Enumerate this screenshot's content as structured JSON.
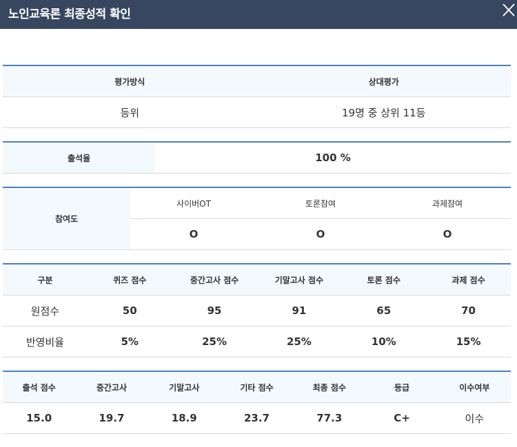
{
  "window": {
    "title": "노인교육론 최종성적 확인"
  },
  "evaluation": {
    "method_label": "평가방식",
    "method_value": "등위",
    "relative_label": "상대평가",
    "relative_value": "19명 중 상위 11등"
  },
  "attendance": {
    "label": "출석율",
    "value": "100 %"
  },
  "participation": {
    "label": "참여도",
    "columns": [
      "사이버OT",
      "토론참여",
      "과제참여"
    ],
    "values": [
      "O",
      "O",
      "O"
    ]
  },
  "scores": {
    "headers": [
      "구분",
      "퀴즈 점수",
      "중간고사 점수",
      "기말고사 점수",
      "토론 점수",
      "과제 점수"
    ],
    "rows": [
      [
        "원점수",
        "50",
        "95",
        "91",
        "65",
        "70"
      ],
      [
        "반영비율",
        "5%",
        "25%",
        "25%",
        "10%",
        "15%"
      ]
    ]
  },
  "final": {
    "headers": [
      "출석 점수",
      "중간고사",
      "기말고사",
      "기타 점수",
      "최종 점수",
      "등급",
      "이수여부"
    ],
    "values": [
      "15.0",
      "19.7",
      "18.9",
      "23.7",
      "77.3",
      "C+",
      "이수"
    ]
  },
  "icons": {
    "close": "close-icon"
  }
}
